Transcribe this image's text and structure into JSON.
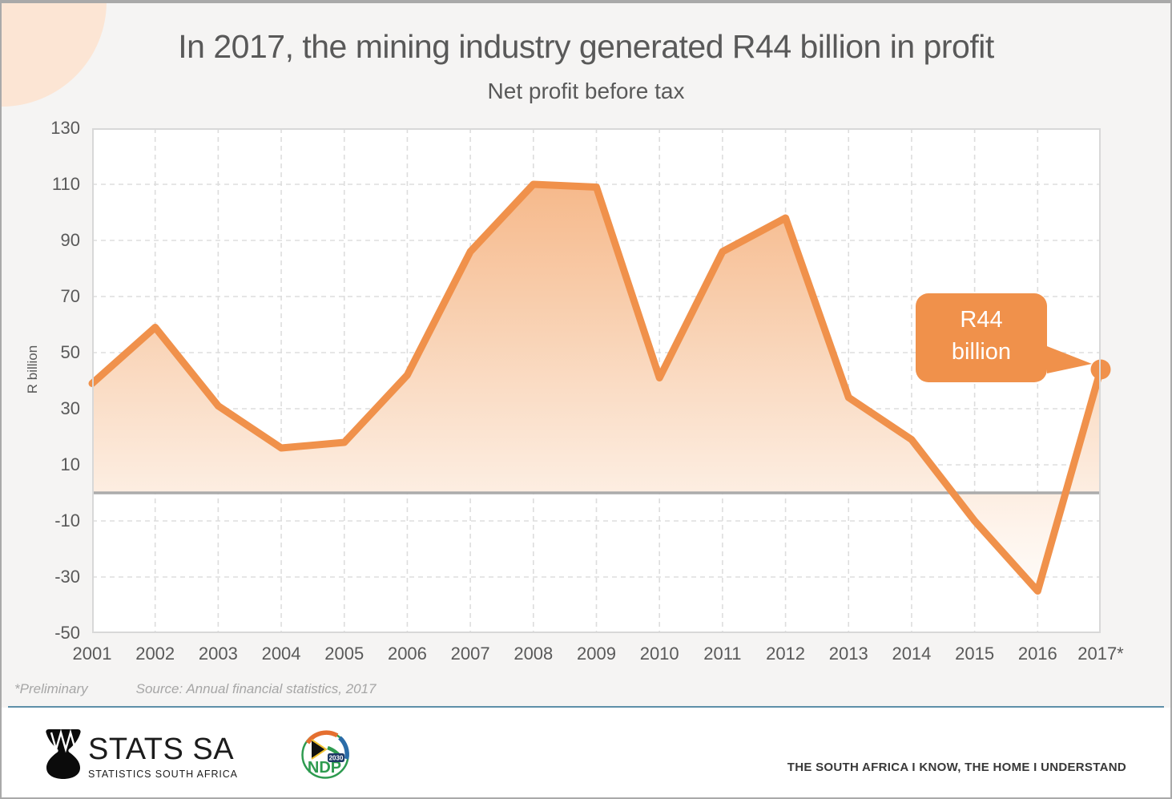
{
  "title": "In 2017, the mining industry generated R44 billion in profit",
  "subtitle": "Net profit before tax",
  "chart_data": {
    "type": "area",
    "x_labels": [
      "2001",
      "2002",
      "2003",
      "2004",
      "2005",
      "2006",
      "2007",
      "2008",
      "2009",
      "2010",
      "2011",
      "2012",
      "2013",
      "2014",
      "2015",
      "2016",
      "2017*"
    ],
    "values": [
      39,
      59,
      31,
      16,
      18,
      42,
      86,
      110,
      109,
      41,
      86,
      98,
      34,
      19,
      -10,
      -35,
      44
    ],
    "ylabel": "R billion",
    "ylim": [
      -50,
      130
    ],
    "yticks": [
      130,
      110,
      90,
      70,
      50,
      30,
      10,
      -10,
      -30,
      -50
    ],
    "grid": "dashed",
    "legend": "none",
    "callout": {
      "line1": "R44",
      "line2": "billion",
      "attached_to": "2017*"
    },
    "colors": {
      "line": "#F0914B",
      "fill_top": "#F6B98B",
      "fill_mid": "#FADDC6",
      "fill_low": "#FEF4EC",
      "fill_bottom": "#FFFEFD",
      "zero_line": "#ABABAB",
      "grid_line": "#DDDDDD",
      "plot_border": "#D8D8D8",
      "callout_bg": "#F0914B",
      "callout_text": "#FFFFFF"
    }
  },
  "footer": {
    "preliminary": "*Preliminary",
    "source": "Source: Annual financial statistics, 2017"
  },
  "branding": {
    "stats_sa": "STATS SA",
    "stats_sa_sub": "STATISTICS SOUTH AFRICA",
    "ndp": "NDP",
    "ndp_year": "2030",
    "tagline": "THE SOUTH AFRICA I KNOW, THE HOME I UNDERSTAND"
  }
}
